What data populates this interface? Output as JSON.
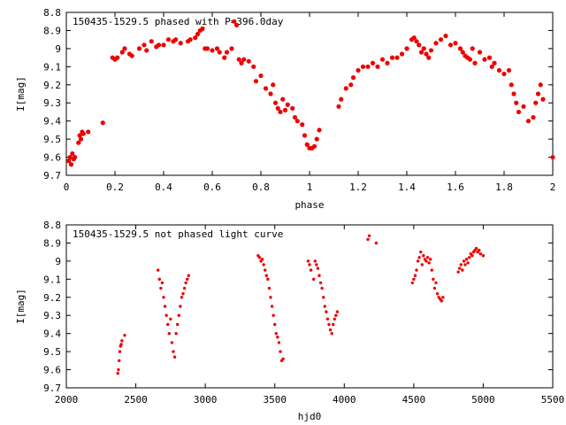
{
  "chart_data": [
    {
      "type": "scatter",
      "title": "150435-1529.5 phased with P=396.0day",
      "xlabel": "phase",
      "ylabel": "I[mag]",
      "xlim": [
        0,
        2
      ],
      "ylim": [
        9.7,
        8.8
      ],
      "y_inverted": true,
      "xticks": [
        "0",
        "0.2",
        "0.4",
        "0.6",
        "0.8",
        "1",
        "1.2",
        "1.4",
        "1.6",
        "1.8",
        "2"
      ],
      "yticks": [
        "8.8",
        "8.9",
        "9",
        "9.1",
        "9.2",
        "9.3",
        "9.4",
        "9.5",
        "9.6",
        "9.7"
      ],
      "grid": false,
      "marker_color": "#ee0000",
      "x": [
        0.01,
        0.015,
        0.02,
        0.025,
        0.03,
        0.035,
        0.05,
        0.055,
        0.06,
        0.065,
        0.07,
        0.09,
        0.15,
        0.19,
        0.2,
        0.21,
        0.23,
        0.24,
        0.26,
        0.27,
        0.3,
        0.32,
        0.33,
        0.35,
        0.37,
        0.38,
        0.4,
        0.42,
        0.44,
        0.45,
        0.47,
        0.5,
        0.51,
        0.53,
        0.54,
        0.55,
        0.56,
        0.57,
        0.58,
        0.6,
        0.62,
        0.63,
        0.65,
        0.66,
        0.68,
        0.69,
        0.7,
        0.71,
        0.72,
        0.73,
        0.75,
        0.77,
        0.78,
        0.8,
        0.82,
        0.84,
        0.85,
        0.86,
        0.87,
        0.88,
        0.89,
        0.9,
        0.91,
        0.93,
        0.94,
        0.95,
        0.97,
        0.98,
        0.99,
        1.0,
        1.01,
        1.02,
        1.03,
        1.04,
        1.12,
        1.13,
        1.15,
        1.17,
        1.18,
        1.2,
        1.22,
        1.24,
        1.26,
        1.28,
        1.3,
        1.32,
        1.34,
        1.36,
        1.38,
        1.4,
        1.42,
        1.43,
        1.44,
        1.45,
        1.46,
        1.47,
        1.48,
        1.49,
        1.5,
        1.52,
        1.54,
        1.56,
        1.58,
        1.6,
        1.62,
        1.63,
        1.64,
        1.65,
        1.66,
        1.67,
        1.68,
        1.7,
        1.72,
        1.74,
        1.75,
        1.76,
        1.78,
        1.8,
        1.82,
        1.83,
        1.84,
        1.85,
        1.86,
        1.88,
        1.9,
        1.92,
        1.93,
        1.94,
        1.95,
        1.96,
        2.0
      ],
      "y": [
        9.62,
        9.6,
        9.64,
        9.58,
        9.61,
        9.6,
        9.52,
        9.48,
        9.5,
        9.46,
        9.47,
        9.46,
        9.41,
        9.05,
        9.06,
        9.05,
        9.02,
        9.0,
        9.03,
        9.04,
        9.0,
        8.98,
        9.01,
        8.96,
        8.99,
        8.98,
        8.98,
        8.95,
        8.96,
        8.95,
        8.97,
        8.96,
        8.95,
        8.94,
        8.92,
        8.9,
        8.89,
        9.0,
        9.0,
        9.01,
        9.0,
        9.02,
        9.05,
        9.02,
        9.0,
        8.85,
        8.87,
        9.06,
        9.08,
        9.06,
        9.07,
        9.1,
        9.18,
        9.15,
        9.22,
        9.25,
        9.2,
        9.3,
        9.33,
        9.35,
        9.28,
        9.34,
        9.31,
        9.33,
        9.38,
        9.4,
        9.42,
        9.48,
        9.53,
        9.55,
        9.55,
        9.54,
        9.5,
        9.45,
        9.32,
        9.28,
        9.22,
        9.2,
        9.16,
        9.12,
        9.1,
        9.1,
        9.08,
        9.1,
        9.06,
        9.08,
        9.05,
        9.05,
        9.03,
        9.0,
        8.95,
        8.94,
        8.96,
        8.98,
        9.02,
        9.0,
        9.03,
        9.05,
        9.01,
        8.97,
        8.95,
        8.93,
        8.98,
        8.97,
        9.0,
        9.02,
        9.04,
        9.05,
        9.06,
        9.0,
        9.08,
        9.02,
        9.06,
        9.05,
        9.1,
        9.08,
        9.12,
        9.14,
        9.12,
        9.2,
        9.25,
        9.3,
        9.35,
        9.32,
        9.4,
        9.38,
        9.3,
        9.25,
        9.2,
        9.28,
        9.6
      ]
    },
    {
      "type": "scatter",
      "title": "150435-1529.5 not phased light curve",
      "xlabel": "hjd0",
      "ylabel": "I[mag]",
      "xlim": [
        2000,
        5500
      ],
      "ylim": [
        9.7,
        8.8
      ],
      "y_inverted": true,
      "xticks": [
        "2000",
        "2500",
        "3000",
        "3500",
        "4000",
        "4500",
        "5000",
        "5500"
      ],
      "yticks": [
        "8.8",
        "8.9",
        "9",
        "9.1",
        "9.2",
        "9.3",
        "9.4",
        "9.5",
        "9.6",
        "9.7"
      ],
      "grid": false,
      "marker_color": "#ee0000",
      "x": [
        2370,
        2375,
        2380,
        2385,
        2390,
        2395,
        2400,
        2420,
        2660,
        2670,
        2680,
        2690,
        2700,
        2710,
        2720,
        2730,
        2740,
        2750,
        2760,
        2770,
        2780,
        2790,
        2800,
        2810,
        2820,
        2830,
        2840,
        2850,
        2860,
        2870,
        2880,
        3380,
        3390,
        3400,
        3410,
        3420,
        3430,
        3440,
        3450,
        3460,
        3470,
        3480,
        3490,
        3500,
        3510,
        3520,
        3530,
        3540,
        3550,
        3560,
        3740,
        3750,
        3760,
        3780,
        3790,
        3800,
        3810,
        3820,
        3830,
        3840,
        3850,
        3860,
        3870,
        3880,
        3890,
        3900,
        3910,
        3920,
        3930,
        3940,
        3950,
        4170,
        4180,
        4230,
        4490,
        4500,
        4510,
        4520,
        4530,
        4540,
        4550,
        4560,
        4570,
        4580,
        4590,
        4600,
        4610,
        4620,
        4630,
        4640,
        4650,
        4660,
        4670,
        4680,
        4690,
        4700,
        4710,
        4820,
        4830,
        4840,
        4850,
        4860,
        4870,
        4880,
        4890,
        4900,
        4910,
        4920,
        4930,
        4940,
        4950,
        4960,
        4970,
        4980,
        5000
      ],
      "y": [
        9.62,
        9.6,
        9.55,
        9.5,
        9.47,
        9.46,
        9.44,
        9.41,
        9.05,
        9.1,
        9.15,
        9.12,
        9.2,
        9.25,
        9.3,
        9.35,
        9.4,
        9.32,
        9.45,
        9.5,
        9.53,
        9.4,
        9.35,
        9.3,
        9.25,
        9.2,
        9.18,
        9.15,
        9.12,
        9.1,
        9.08,
        8.97,
        8.98,
        9.0,
        8.99,
        9.02,
        9.05,
        9.08,
        9.1,
        9.15,
        9.2,
        9.25,
        9.3,
        9.35,
        9.4,
        9.42,
        9.45,
        9.5,
        9.55,
        9.54,
        9.0,
        9.02,
        9.05,
        9.1,
        9.0,
        9.02,
        9.04,
        9.08,
        9.12,
        9.15,
        9.2,
        9.25,
        9.28,
        9.32,
        9.35,
        9.38,
        9.4,
        9.35,
        9.32,
        9.3,
        9.28,
        8.88,
        8.86,
        8.9,
        9.12,
        9.1,
        9.08,
        9.05,
        9.0,
        8.98,
        8.95,
        9.02,
        8.97,
        8.99,
        9.0,
        8.98,
        9.01,
        8.99,
        9.05,
        9.1,
        9.15,
        9.12,
        9.18,
        9.2,
        9.21,
        9.22,
        9.2,
        9.06,
        9.04,
        9.02,
        9.05,
        9.0,
        9.02,
        8.99,
        9.01,
        8.98,
        8.96,
        8.97,
        8.95,
        8.94,
        8.93,
        8.95,
        8.94,
        8.96,
        8.97
      ]
    }
  ]
}
